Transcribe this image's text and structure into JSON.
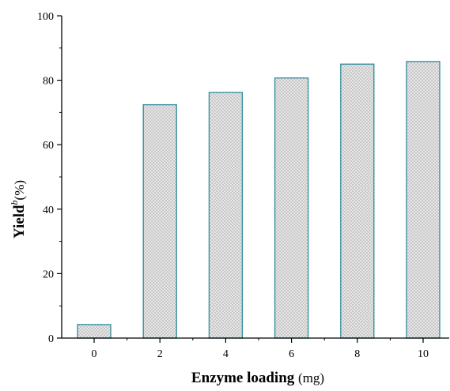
{
  "chart_data": {
    "type": "bar",
    "title": "",
    "xlabel": {
      "main": "Enzyme loading",
      "unit": "(mg)"
    },
    "ylabel": {
      "main": "Yield",
      "superscript": "b",
      "unit": "(%)"
    },
    "categories": [
      "0",
      "2",
      "4",
      "6",
      "8",
      "10"
    ],
    "values": [
      4.2,
      72.4,
      76.2,
      80.7,
      85.0,
      85.8
    ],
    "ylim": [
      0,
      100
    ],
    "yticks": [
      0,
      20,
      40,
      60,
      80,
      100
    ],
    "grid": false,
    "legend": "none",
    "colors": {
      "bar_edge": "#2e8b9a",
      "bar_fill": "#ebebeb",
      "hatch": "#b5b5b5",
      "axis": "#000000"
    }
  }
}
